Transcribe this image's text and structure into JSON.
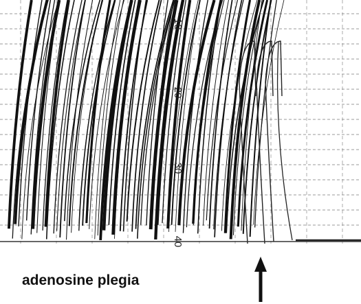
{
  "scale_labels": [
    "10",
    "20",
    "30",
    "40"
  ],
  "caption": "adenosine plegia"
}
